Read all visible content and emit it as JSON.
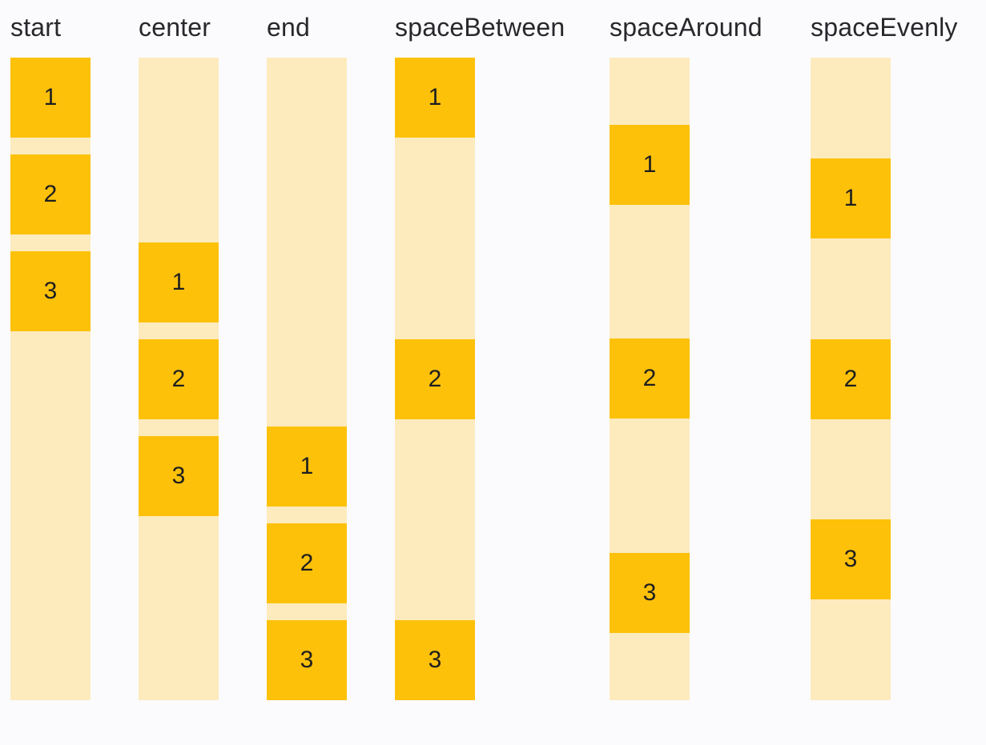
{
  "colors": {
    "background": "#FBFBFE",
    "container": "#FDEBBE",
    "box": "#FDC10A",
    "label_text": "#28282C",
    "digit_text": "#1E1E20"
  },
  "columns": [
    {
      "label": "start",
      "justify": "flex-start",
      "items": [
        "1",
        "2",
        "3"
      ]
    },
    {
      "label": "center",
      "justify": "center",
      "items": [
        "1",
        "2",
        "3"
      ]
    },
    {
      "label": "end",
      "justify": "flex-end",
      "items": [
        "1",
        "2",
        "3"
      ]
    },
    {
      "label": "spaceBetween",
      "justify": "space-between",
      "items": [
        "1",
        "2",
        "3"
      ]
    },
    {
      "label": "spaceAround",
      "justify": "space-around",
      "items": [
        "1",
        "2",
        "3"
      ]
    },
    {
      "label": "spaceEvenly",
      "justify": "space-evenly",
      "items": [
        "1",
        "2",
        "3"
      ]
    }
  ]
}
